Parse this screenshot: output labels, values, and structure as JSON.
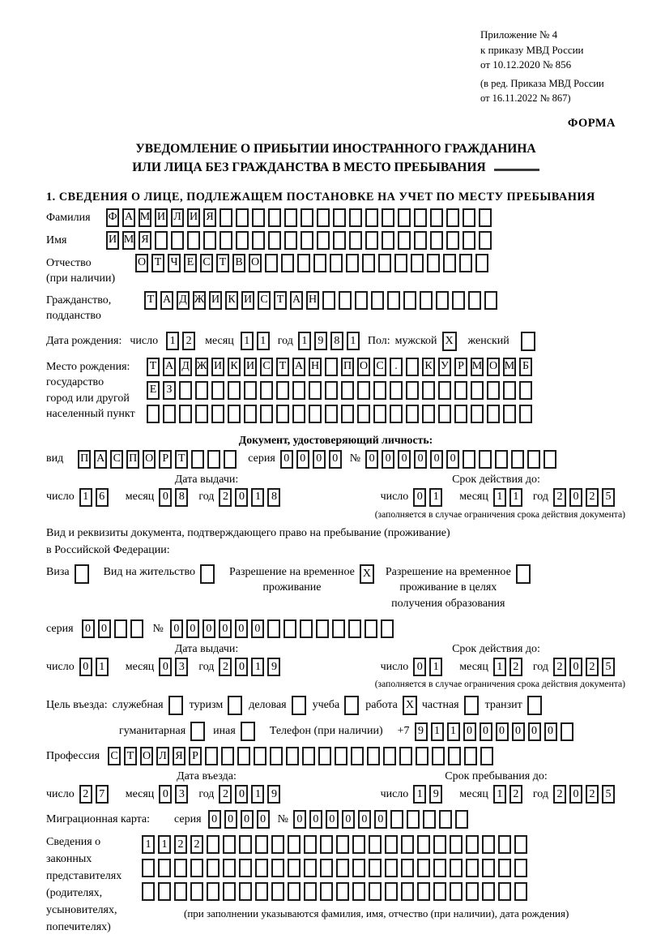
{
  "colors": {
    "paper": "#ffffff",
    "ink": "#000000",
    "box_border": "#1b1b1b"
  },
  "header": {
    "appendix_line1": "Приложение № 4",
    "appendix_line2": "к приказу МВД России",
    "appendix_line3": "от 10.12.2020 № 856",
    "amendment_line1": "(в ред. Приказа МВД России",
    "amendment_line2": "от 16.11.2022 № 867)",
    "form_label": "ФОРМА"
  },
  "title": {
    "line1": "УВЕДОМЛЕНИЕ О ПРИБЫТИИ ИНОСТРАННОГО ГРАЖДАНИНА",
    "line2": "ИЛИ ЛИЦА БЕЗ ГРАЖДАНСТВА В МЕСТО ПРЕБЫВАНИЯ"
  },
  "section1_heading": "1. СВЕДЕНИЯ О ЛИЦЕ, ПОДЛЕЖАЩЕМ ПОСТАНОВКЕ НА УЧЕТ ПО МЕСТУ ПРЕБЫВАНИЯ",
  "date_labels": {
    "day": "число",
    "month": "месяц",
    "year": "год"
  },
  "person": {
    "surname": {
      "label": "Фамилия",
      "value": "ФАМИЛИЯ",
      "cells": 24
    },
    "given_name": {
      "label": "Имя",
      "value": "ИМЯ",
      "cells": 24
    },
    "patronymic": {
      "label_line1": "Отчество",
      "label_line2": "(при наличии)",
      "value": "ОТЧЕСТВО",
      "cells": 22
    },
    "citizenship": {
      "label_line1": "Гражданство,",
      "label_line2": "подданство",
      "value": "ТАДЖИКИСТАН",
      "cells": 22
    },
    "birth_date": {
      "label": "Дата рождения:",
      "day": "12",
      "month": "11",
      "year": "1981"
    },
    "sex": {
      "label": "Пол:",
      "male_label": "мужской",
      "male_checked": "X",
      "female_label": "женский",
      "female_checked": ""
    },
    "birth_place": {
      "label_line1": "Место рождения:",
      "label_line2": "государство",
      "label_line3": "город или другой",
      "label_line4": "населенный пункт",
      "row1": {
        "value": "ТАДЖИКИСТАН ПОС. КУРМОМБ",
        "cells": 24
      },
      "row2": {
        "value": "ЕЗ",
        "cells": 24
      },
      "row3": {
        "value": "",
        "cells": 24
      }
    }
  },
  "identity_doc": {
    "heading": "Документ, удостоверяющий личность:",
    "kind_label": "вид",
    "kind": {
      "value": "ПАСПОРТ",
      "cells": 10
    },
    "series_label": "серия",
    "series": {
      "value": "0000",
      "cells": 4
    },
    "number_label": "№",
    "number": {
      "value": "000000",
      "cells": 12
    },
    "issue_heading": "Дата выдачи:",
    "issue": {
      "day": "16",
      "month": "08",
      "year": "2018"
    },
    "expiry_heading": "Срок действия до:",
    "expiry": {
      "day": "01",
      "month": "11",
      "year": "2025"
    },
    "note": "(заполняется в случае ограничения срока действия документа)"
  },
  "residence_doc": {
    "intro_line1": "Вид и реквизиты документа, подтверждающего право на пребывание (проживание)",
    "intro_line2": "в Российской Федерации:",
    "visa": {
      "label": "Виза",
      "checked": ""
    },
    "residence_permit": {
      "label": "Вид на жительство",
      "checked": ""
    },
    "temp_permit": {
      "label_line1": "Разрешение на временное",
      "label_line2": "проживание",
      "checked": "X"
    },
    "edu_permit": {
      "label_line1": "Разрешение на временное",
      "label_line2": "проживание в целях",
      "label_line3": "получения образования",
      "checked": ""
    },
    "series_label": "серия",
    "series": {
      "value": "00",
      "cells": 4
    },
    "number_label": "№",
    "number": {
      "value": "000000",
      "cells": 14
    },
    "issue_heading": "Дата выдачи:",
    "issue": {
      "day": "01",
      "month": "03",
      "year": "2019"
    },
    "expiry_heading": "Срок действия до:",
    "expiry": {
      "day": "01",
      "month": "12",
      "year": "2025"
    },
    "note": "(заполняется в случае ограничения срока действия документа)"
  },
  "purpose": {
    "label": "Цель въезда:",
    "options": [
      {
        "label": "служебная",
        "checked": ""
      },
      {
        "label": "туризм",
        "checked": ""
      },
      {
        "label": "деловая",
        "checked": ""
      },
      {
        "label": "учеба",
        "checked": ""
      },
      {
        "label": "работа",
        "checked": "X"
      },
      {
        "label": "частная",
        "checked": ""
      },
      {
        "label": "транзит",
        "checked": ""
      }
    ],
    "options_row2": [
      {
        "label": "гуманитарная",
        "checked": ""
      },
      {
        "label": "иная",
        "checked": ""
      }
    ],
    "phone_label": "Телефон (при наличии)",
    "phone_prefix": "+7",
    "phone": {
      "value": "911000000",
      "cells": 10
    }
  },
  "profession": {
    "label": "Профессия",
    "value": "СТОЛЯР",
    "cells": 24
  },
  "entry": {
    "date_heading": "Дата въезда:",
    "date": {
      "day": "27",
      "month": "03",
      "year": "2019"
    },
    "stay_heading": "Срок пребывания до:",
    "stay": {
      "day": "19",
      "month": "12",
      "year": "2025"
    }
  },
  "migration_card": {
    "label": "Миграционная карта:",
    "series_label": "серия",
    "series": {
      "value": "0000",
      "cells": 4
    },
    "number_label": "№",
    "number": {
      "value": "000000",
      "cells": 11
    }
  },
  "representatives": {
    "label_line1": "Сведения о",
    "label_line2": "законных",
    "label_line3": "представителях",
    "label_line4": "(родителях,",
    "label_line5": "усыновителях,",
    "label_line6": "попечителях)",
    "row1": {
      "value": "1122",
      "cells": 24
    },
    "row2": {
      "value": "",
      "cells": 24
    },
    "row3": {
      "value": "",
      "cells": 24
    },
    "note": "(при заполнении указываются фамилия, имя, отчество (при наличии), дата рождения)"
  }
}
